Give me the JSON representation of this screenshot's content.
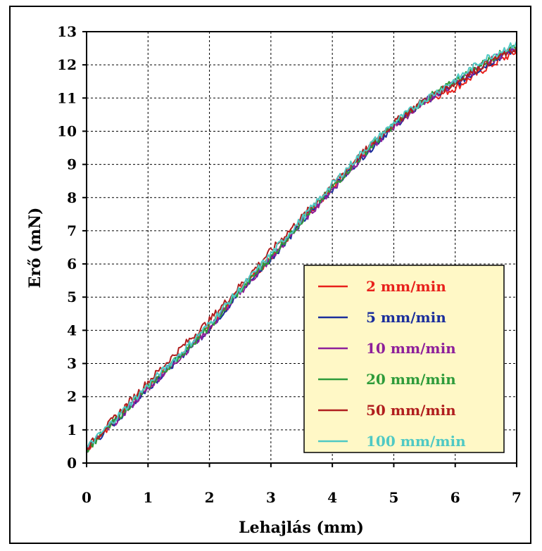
{
  "chart_data": {
    "type": "line",
    "xlabel": "Lehajlás (mm)",
    "ylabel": "Erő (mN)",
    "xlim": [
      0,
      7
    ],
    "ylim": [
      0,
      13
    ],
    "x_ticks": [
      "0",
      "1",
      "2",
      "3",
      "4",
      "5",
      "6",
      "7"
    ],
    "y_ticks": [
      "0",
      "1",
      "2",
      "3",
      "4",
      "5",
      "6",
      "7",
      "8",
      "9",
      "10",
      "11",
      "12",
      "13"
    ],
    "grid": true,
    "legend_position": "bottom-right",
    "legend_background": "#FFF8C6",
    "x": [
      0,
      0.5,
      1,
      1.5,
      2,
      2.5,
      3,
      3.5,
      4,
      4.5,
      5,
      5.5,
      6,
      6.5,
      7
    ],
    "series": [
      {
        "name": "2 mm/min",
        "color": "#E8211C",
        "values": [
          0.4,
          1.35,
          2.3,
          3.2,
          4.1,
          5.2,
          6.2,
          7.3,
          8.3,
          9.3,
          10.2,
          10.9,
          11.3,
          11.9,
          12.4
        ]
      },
      {
        "name": "5 mm/min",
        "color": "#1B2E9C",
        "values": [
          0.4,
          1.3,
          2.25,
          3.15,
          4.05,
          5.15,
          6.15,
          7.25,
          8.25,
          9.25,
          10.15,
          10.9,
          11.4,
          12.0,
          12.5
        ]
      },
      {
        "name": "10 mm/min",
        "color": "#8E1F9A",
        "values": [
          0.4,
          1.3,
          2.25,
          3.15,
          4.05,
          5.15,
          6.15,
          7.25,
          8.25,
          9.25,
          10.15,
          10.9,
          11.45,
          12.05,
          12.55
        ]
      },
      {
        "name": "20 mm/min",
        "color": "#2E9B3A",
        "values": [
          0.4,
          1.35,
          2.3,
          3.2,
          4.1,
          5.2,
          6.2,
          7.3,
          8.3,
          9.3,
          10.2,
          10.95,
          11.5,
          12.1,
          12.6
        ]
      },
      {
        "name": "50 mm/min",
        "color": "#B01E1E",
        "values": [
          0.45,
          1.45,
          2.45,
          3.4,
          4.3,
          5.35,
          6.4,
          7.4,
          8.4,
          9.35,
          10.25,
          10.95,
          11.45,
          12.05,
          12.5
        ]
      },
      {
        "name": "100 mm/min",
        "color": "#4FC9C4",
        "values": [
          0.45,
          1.4,
          2.35,
          3.25,
          4.2,
          5.25,
          6.3,
          7.35,
          8.4,
          9.4,
          10.25,
          10.95,
          11.55,
          12.2,
          12.65
        ]
      }
    ]
  }
}
